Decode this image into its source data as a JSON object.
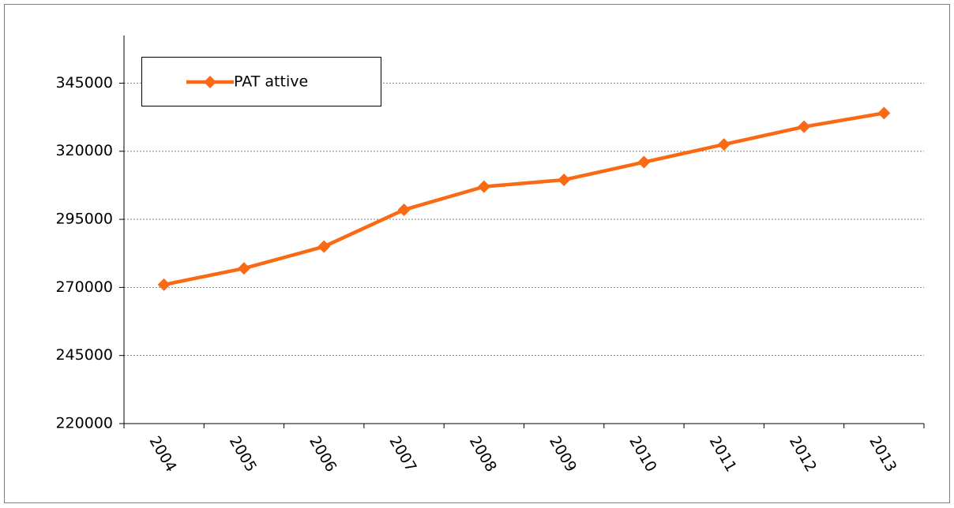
{
  "chart_data": {
    "type": "line",
    "categories": [
      "2004",
      "2005",
      "2006",
      "2007",
      "2008",
      "2009",
      "2010",
      "2011",
      "2012",
      "2013"
    ],
    "series": [
      {
        "name": "PAT attive",
        "color": "#fa6a14",
        "values": [
          271000,
          277000,
          285000,
          298500,
          307000,
          309500,
          316000,
          322500,
          329000,
          334000
        ]
      }
    ],
    "ylim": [
      220000,
      362500
    ],
    "yticks": [
      220000,
      245000,
      270000,
      295000,
      320000,
      345000
    ],
    "grid": true,
    "legend": "top-left"
  }
}
